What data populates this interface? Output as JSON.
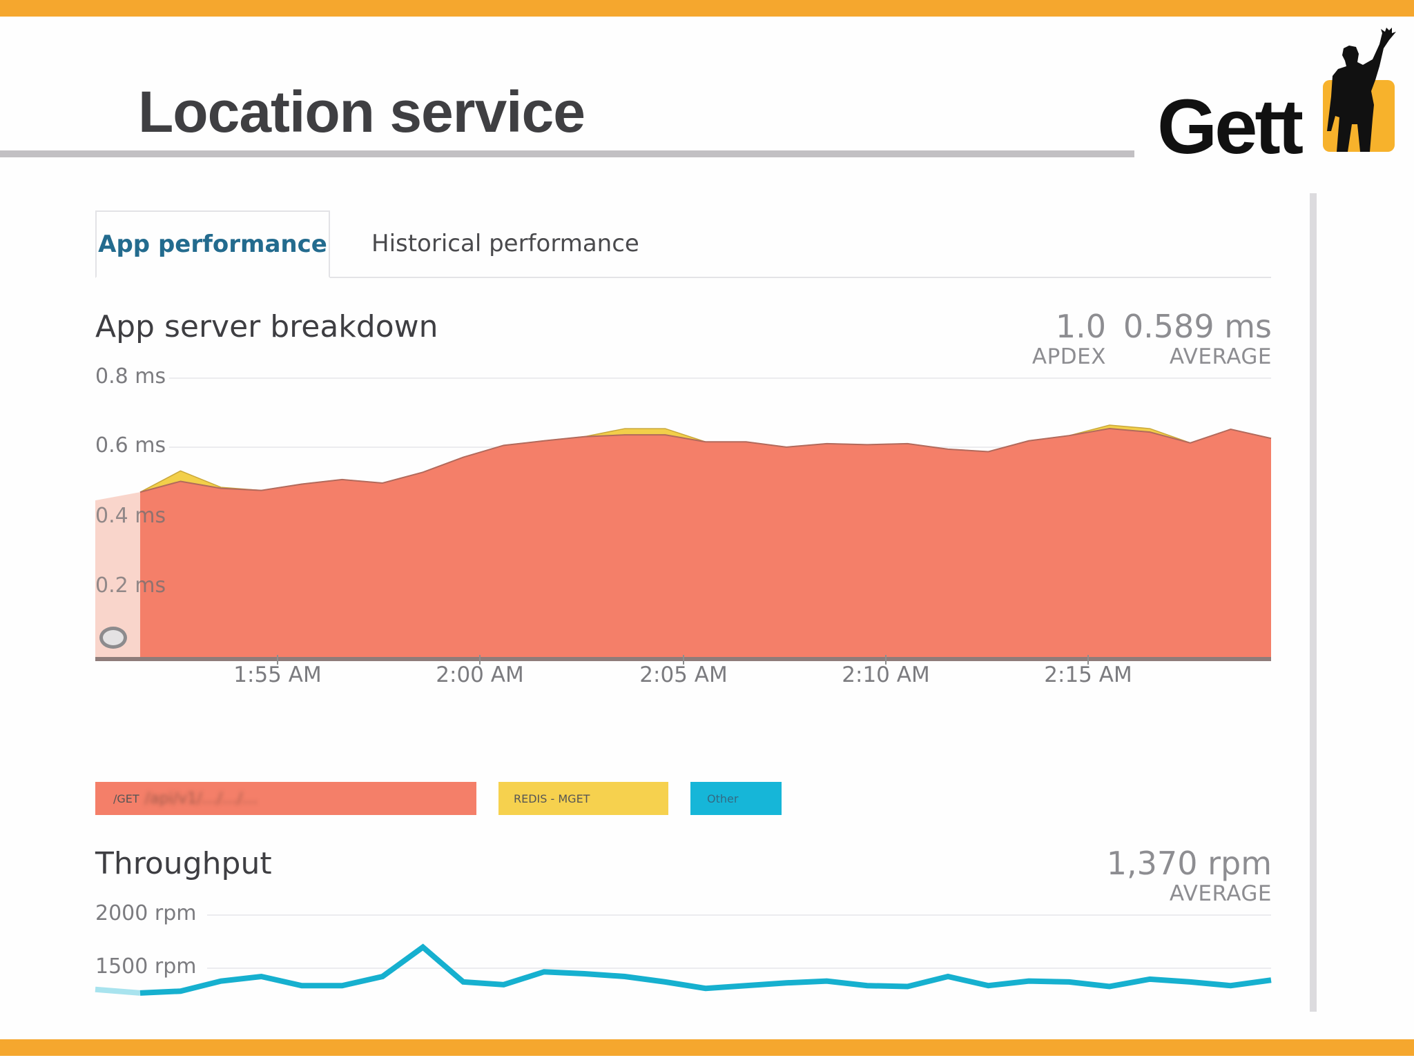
{
  "slide": {
    "title": "Location service",
    "logo_text": "Gett",
    "accent_color": "#f5a72e"
  },
  "tabs": [
    {
      "label": "App performance",
      "active": true
    },
    {
      "label": "Historical performance",
      "active": false
    }
  ],
  "breakdown": {
    "title": "App server breakdown",
    "apdex_value": "1.0",
    "apdex_label": "APDEX",
    "average_value": "0.589 ms",
    "average_label": "AVERAGE",
    "y_ticks": [
      "0.8 ms",
      "0.6 ms",
      "0.4 ms",
      "0.2 ms"
    ],
    "x_ticks": [
      "1:55 AM",
      "2:00 AM",
      "2:05 AM",
      "2:10 AM",
      "2:15 AM"
    ]
  },
  "legend": [
    {
      "label": "/GET",
      "obscured_suffix": "/api/v1/…/…/…",
      "color": "#f47f69"
    },
    {
      "label": "REDIS - MGET",
      "color": "#f6d14e"
    },
    {
      "label": "Other",
      "color": "#16b6d8"
    }
  ],
  "throughput": {
    "title": "Throughput",
    "average_value": "1,370 rpm",
    "average_label": "AVERAGE",
    "y_ticks": [
      "2000 rpm",
      "1500 rpm"
    ]
  },
  "chart_data": [
    {
      "type": "area",
      "title": "App server breakdown",
      "ylabel": "ms",
      "ylim": [
        0,
        0.8
      ],
      "grid": true,
      "legend_position": "bottom",
      "x_tick_labels": [
        "1:55 AM",
        "2:00 AM",
        "2:05 AM",
        "2:10 AM",
        "2:15 AM"
      ],
      "x_start_minutes_before_155": 3.4,
      "x_step_minutes": 0.77,
      "series": [
        {
          "name": "/GET",
          "color": "#f47f69",
          "values": [
            0.474,
            0.505,
            0.485,
            0.479,
            0.497,
            0.51,
            0.5,
            0.531,
            0.574,
            0.608,
            0.621,
            0.633,
            0.638,
            0.638,
            0.618,
            0.618,
            0.603,
            0.613,
            0.61,
            0.613,
            0.597,
            0.59,
            0.621,
            0.636,
            0.656,
            0.646,
            0.615,
            0.654,
            0.628
          ]
        },
        {
          "name": "REDIS - MGET",
          "color": "#f6d14e",
          "values": [
            0.0,
            0.03,
            0.003,
            0,
            0,
            0,
            0,
            0,
            0,
            0,
            0,
            0,
            0.018,
            0.018,
            0,
            0,
            0,
            0,
            0,
            0,
            0,
            0,
            0,
            0,
            0.01,
            0.01,
            0,
            0,
            0
          ]
        },
        {
          "name": "Other",
          "color": "#16b6d8",
          "values": [
            0,
            0,
            0,
            0,
            0,
            0,
            0,
            0,
            0,
            0,
            0,
            0,
            0,
            0,
            0,
            0,
            0,
            0,
            0,
            0,
            0,
            0,
            0,
            0,
            0,
            0,
            0,
            0,
            0
          ]
        }
      ],
      "annotations": [
        "shaded selection region at left edge (before first data point)",
        "average 0.589 ms",
        "apdex 1.0"
      ]
    },
    {
      "type": "line",
      "title": "Throughput",
      "ylabel": "rpm",
      "ylim": [
        1000,
        2000
      ],
      "grid": true,
      "series": [
        {
          "name": "Throughput",
          "color": "#16b6d8",
          "values": [
            1267,
            1284,
            1379,
            1422,
            1336,
            1336,
            1422,
            1698,
            1371,
            1345,
            1466,
            1448,
            1422,
            1371,
            1310,
            1336,
            1362,
            1379,
            1336,
            1328,
            1422,
            1336,
            1379,
            1371,
            1328,
            1397,
            1371,
            1336,
            1388
          ]
        }
      ],
      "annotations": [
        "average 1,370 rpm"
      ]
    }
  ]
}
